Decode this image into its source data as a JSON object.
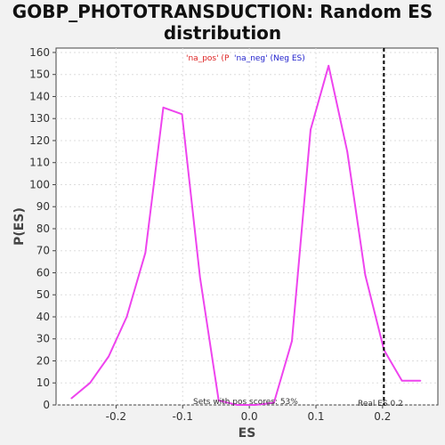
{
  "chart_data": {
    "type": "line",
    "title_line1": "GOBP_PHOTOTRANSDUCTION: Random ES",
    "title_line2": "distribution",
    "xlabel": "ES",
    "ylabel": "P(ES)",
    "xlim": [
      -0.29,
      0.283
    ],
    "ylim": [
      0,
      162
    ],
    "x_ticks": [
      -0.2,
      -0.1,
      0.0,
      0.1,
      0.2
    ],
    "x_tick_labels": [
      "-0.2",
      "-0.1",
      "0.0",
      "0.1",
      "0.2"
    ],
    "y_ticks": [
      0,
      10,
      20,
      30,
      40,
      50,
      60,
      70,
      80,
      90,
      100,
      110,
      120,
      130,
      140,
      150,
      160
    ],
    "y_tick_labels": [
      "0",
      "10",
      "20",
      "30",
      "40",
      "50",
      "60",
      "70",
      "80",
      "90",
      "100",
      "110",
      "120",
      "130",
      "140",
      "150",
      "160"
    ],
    "grid": true,
    "line_color": "#ee44ee",
    "series": [
      {
        "x": [
          -0.267,
          -0.239,
          -0.211,
          -0.184,
          -0.156,
          -0.129,
          -0.101,
          -0.074,
          -0.046,
          -0.018,
          0.009,
          0.037,
          0.064,
          0.092,
          0.119,
          0.147,
          0.174,
          0.202,
          0.229,
          0.257
        ],
        "y": [
          3,
          10,
          22,
          40,
          69,
          135,
          132,
          58,
          2,
          0,
          0,
          1,
          29,
          125,
          154,
          115,
          59,
          25,
          11,
          11
        ]
      }
    ],
    "real_es": {
      "x": 0.202,
      "label": "Real ES 0.2",
      "color": "#000000"
    },
    "legend": {
      "position": "top-center",
      "pos_label": "'na_pos' (P",
      "pos_color": "#dd2222",
      "neg_label": "'na_neg' (Neg ES)",
      "neg_color": "#2222cc"
    },
    "annotation": "Sets with pos scores: 53%"
  }
}
